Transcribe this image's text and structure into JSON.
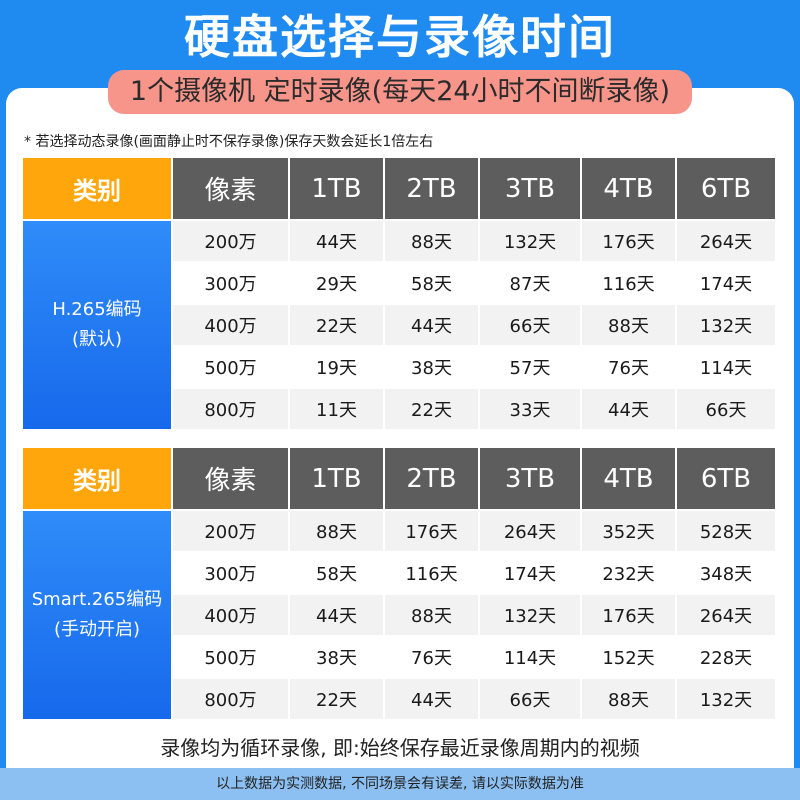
{
  "title": "硬盘选择与录像时间",
  "subtitle": "1个摄像机 定时录像(每天24小时不间断录像)",
  "note": "* 若选择动态录像(画面静止时不保存录像)保存天数会延长1倍左右",
  "header": {
    "category": "类别",
    "pixels": "像素",
    "capacities": [
      "1TB",
      "2TB",
      "3TB",
      "4TB",
      "6TB"
    ]
  },
  "tables": [
    {
      "codec_line1": "H.265编码",
      "codec_line2": "(默认)",
      "rows": [
        {
          "pixels": "200万",
          "values": [
            "44天",
            "88天",
            "132天",
            "176天",
            "264天"
          ]
        },
        {
          "pixels": "300万",
          "values": [
            "29天",
            "58天",
            "87天",
            "116天",
            "174天"
          ]
        },
        {
          "pixels": "400万",
          "values": [
            "22天",
            "44天",
            "66天",
            "88天",
            "132天"
          ]
        },
        {
          "pixels": "500万",
          "values": [
            "19天",
            "38天",
            "57天",
            "76天",
            "114天"
          ]
        },
        {
          "pixels": "800万",
          "values": [
            "11天",
            "22天",
            "33天",
            "44天",
            "66天"
          ]
        }
      ]
    },
    {
      "codec_line1": "Smart.265编码",
      "codec_line2": "(手动开启)",
      "rows": [
        {
          "pixels": "200万",
          "values": [
            "88天",
            "176天",
            "264天",
            "352天",
            "528天"
          ]
        },
        {
          "pixels": "300万",
          "values": [
            "58天",
            "116天",
            "174天",
            "232天",
            "348天"
          ]
        },
        {
          "pixels": "400万",
          "values": [
            "44天",
            "88天",
            "132天",
            "176天",
            "264天"
          ]
        },
        {
          "pixels": "500万",
          "values": [
            "38天",
            "76天",
            "114天",
            "152天",
            "228天"
          ]
        },
        {
          "pixels": "800万",
          "values": [
            "22天",
            "44天",
            "66天",
            "88天",
            "132天"
          ]
        }
      ]
    }
  ],
  "footer_main": "录像均为循环录像, 即:始终保存最近录像周期内的视频",
  "footer_disclaimer": "以上数据为实测数据, 不同场景会有误差, 请以实际数据为准",
  "colors": {
    "background": "#1f8bf0",
    "subtitle_bg": "#f7958a",
    "category_header": "#ffa60d",
    "header_dark": "#5d5d5d",
    "category_cell": "#1f78f0",
    "footer_strip": "#8cc0f2"
  }
}
